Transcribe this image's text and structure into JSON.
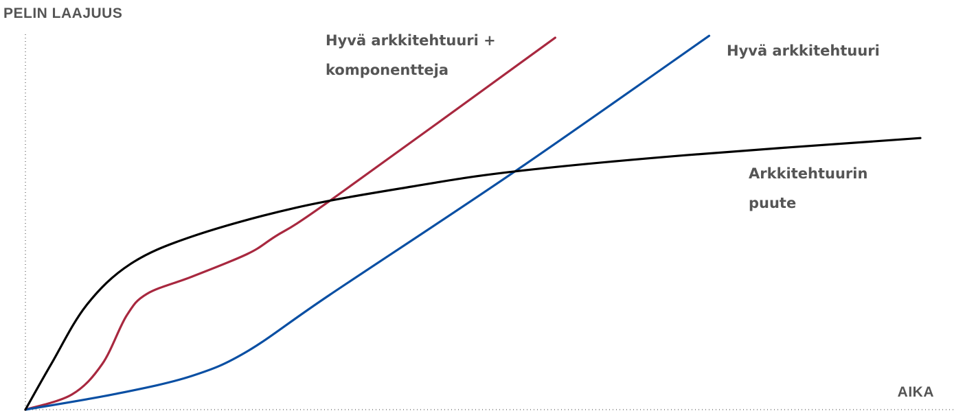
{
  "chart_data": {
    "type": "line",
    "y_label": "PELIN LAAJUUS",
    "x_label": "AIKA",
    "xlim": [
      0,
      100
    ],
    "ylim": [
      0,
      100
    ],
    "series": [
      {
        "name": "Hyvä arkkitehtuuri + komponentteja",
        "color": "#a8283f",
        "x": [
          0,
          5.2,
          8.6,
          11.3,
          13.6,
          18.6,
          24.8,
          27.9,
          34.0,
          59.2
        ],
        "values": [
          0,
          4.0,
          12.1,
          24.8,
          30.6,
          35.1,
          41.1,
          45.7,
          55.1,
          98.2
        ]
      },
      {
        "name": "Hyvä arkkitehtuuri",
        "color": "#0a4fa3",
        "x": [
          0,
          10.2,
          18.6,
          24.8,
          34.0,
          54.7,
          76.4
        ],
        "values": [
          0,
          4.2,
          8.9,
          15.4,
          30.3,
          62.9,
          98.7
        ]
      },
      {
        "name": "Arkkitehtuurin puute",
        "color": "#000000",
        "x": [
          0,
          2.9,
          6.8,
          11.7,
          18.6,
          30.2,
          43.2,
          54.7,
          73.9,
          100
        ],
        "values": [
          0,
          12.1,
          27.5,
          38.4,
          45.7,
          53.3,
          58.9,
          62.9,
          67.2,
          71.7
        ]
      }
    ]
  }
}
